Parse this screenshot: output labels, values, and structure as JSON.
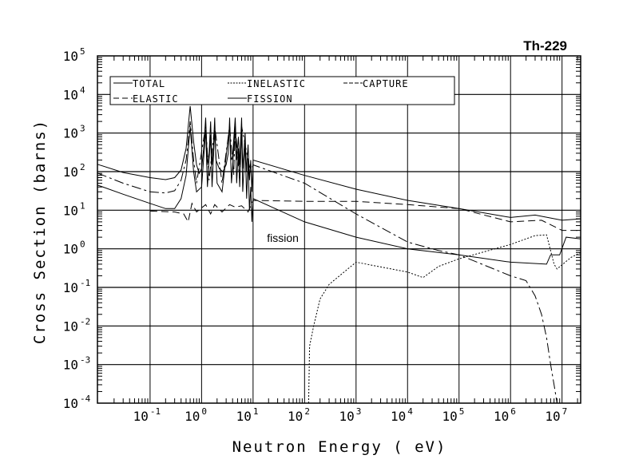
{
  "chart_data": {
    "type": "line",
    "title": "Th-229",
    "xlabel": "Neutron Energy ( eV)",
    "ylabel": "Cross Section (barns)",
    "xscale": "log",
    "yscale": "log",
    "xlim": [
      0.0095,
      23000000
    ],
    "ylim": [
      0.0001,
      100000
    ],
    "grid": true,
    "legend_position": "top-left",
    "x_ticks": [
      {
        "exp": "-1",
        "value": 0.1
      },
      {
        "exp": "0",
        "value": 1
      },
      {
        "exp": "1",
        "value": 10
      },
      {
        "exp": "2",
        "value": 100
      },
      {
        "exp": "3",
        "value": 1000
      },
      {
        "exp": "4",
        "value": 10000
      },
      {
        "exp": "5",
        "value": 100000
      },
      {
        "exp": "6",
        "value": 1000000
      },
      {
        "exp": "7",
        "value": 10000000
      }
    ],
    "y_ticks": [
      {
        "exp": "5",
        "value": 100000
      },
      {
        "exp": "4",
        "value": 10000
      },
      {
        "exp": "3",
        "value": 1000
      },
      {
        "exp": "2",
        "value": 100
      },
      {
        "exp": "1",
        "value": 10
      },
      {
        "exp": "0",
        "value": 1
      },
      {
        "exp": "-1",
        "value": 0.1
      },
      {
        "exp": "-2",
        "value": 0.01
      },
      {
        "exp": "-3",
        "value": 0.001
      },
      {
        "exp": "-4",
        "value": 0.0001
      }
    ],
    "tick_base": "10",
    "annotations": [
      {
        "text": "fission",
        "x": 20,
        "y": 1.9
      }
    ],
    "series": [
      {
        "name": "TOTAL",
        "style": "solid",
        "points": [
          [
            0.0095,
            155
          ],
          [
            0.03,
            95
          ],
          [
            0.1,
            70
          ],
          [
            0.2,
            62
          ],
          [
            0.3,
            70
          ],
          [
            0.4,
            110
          ],
          [
            0.5,
            400
          ],
          [
            0.6,
            5000
          ],
          [
            0.7,
            600
          ],
          [
            0.8,
            150
          ],
          [
            0.9,
            90
          ],
          [
            1.0,
            120
          ],
          [
            1.1,
            400
          ],
          [
            1.2,
            2500
          ],
          [
            1.3,
            150
          ],
          [
            1.4,
            300
          ],
          [
            1.5,
            2000
          ],
          [
            1.6,
            150
          ],
          [
            1.7,
            400
          ],
          [
            1.8,
            2500
          ],
          [
            1.9,
            200
          ],
          [
            2.2,
            120
          ],
          [
            2.6,
            100
          ],
          [
            3.0,
            150
          ],
          [
            3.3,
            300
          ],
          [
            3.5,
            2500
          ],
          [
            3.7,
            200
          ],
          [
            4.0,
            250
          ],
          [
            4.5,
            2500
          ],
          [
            4.8,
            200
          ],
          [
            5.2,
            800
          ],
          [
            5.5,
            150
          ],
          [
            6.0,
            2500
          ],
          [
            6.3,
            120
          ],
          [
            7.0,
            1000
          ],
          [
            7.4,
            100
          ],
          [
            8.0,
            500
          ],
          [
            8.5,
            60
          ],
          [
            9.0,
            200
          ],
          [
            9.5,
            30
          ],
          [
            10,
            200
          ],
          [
            100,
            80
          ],
          [
            1000,
            35
          ],
          [
            10000,
            18
          ],
          [
            100000,
            11
          ],
          [
            1000000,
            6.5
          ],
          [
            3000000,
            7.5
          ],
          [
            10000000,
            5.5
          ],
          [
            23000000,
            6
          ]
        ]
      },
      {
        "name": "ELASTIC",
        "style": "longdash",
        "points": [
          [
            0.1,
            9.5
          ],
          [
            0.3,
            9
          ],
          [
            0.45,
            8
          ],
          [
            0.55,
            5
          ],
          [
            0.65,
            15
          ],
          [
            0.8,
            9
          ],
          [
            1.2,
            14
          ],
          [
            1.5,
            8
          ],
          [
            1.8,
            14
          ],
          [
            2.5,
            9
          ],
          [
            3.5,
            14
          ],
          [
            4.5,
            12
          ],
          [
            6,
            13
          ],
          [
            8,
            9
          ],
          [
            10,
            18
          ],
          [
            100,
            17
          ],
          [
            1000,
            17
          ],
          [
            10000,
            14
          ],
          [
            100000,
            11
          ],
          [
            1000000,
            5
          ],
          [
            4000000,
            5.5
          ],
          [
            10000000,
            3
          ],
          [
            23000000,
            3
          ]
        ]
      },
      {
        "name": "CAPTURE",
        "style": "dashdot",
        "points": [
          [
            0.0095,
            92
          ],
          [
            0.03,
            50
          ],
          [
            0.1,
            30
          ],
          [
            0.2,
            28
          ],
          [
            0.3,
            32
          ],
          [
            0.4,
            60
          ],
          [
            0.5,
            200
          ],
          [
            0.6,
            2000
          ],
          [
            0.7,
            200
          ],
          [
            0.8,
            50
          ],
          [
            1.2,
            1500
          ],
          [
            1.4,
            60
          ],
          [
            1.8,
            1500
          ],
          [
            2.5,
            50
          ],
          [
            3.5,
            1500
          ],
          [
            4.2,
            80
          ],
          [
            4.5,
            1500
          ],
          [
            5.5,
            60
          ],
          [
            6,
            1500
          ],
          [
            7,
            500
          ],
          [
            8,
            200
          ],
          [
            9,
            100
          ],
          [
            10,
            150
          ],
          [
            100,
            50
          ],
          [
            1000,
            8
          ],
          [
            10000,
            1.5
          ],
          [
            40000,
            0.9
          ],
          [
            100000,
            0.7
          ],
          [
            1000000,
            0.2
          ],
          [
            2000000,
            0.15
          ],
          [
            3000000,
            0.06
          ],
          [
            4000000,
            0.02
          ],
          [
            5000000,
            0.005
          ],
          [
            6000000,
            0.001
          ],
          [
            7000000,
            0.0003
          ],
          [
            8000000,
            0.0001
          ]
        ]
      },
      {
        "name": "INELASTIC",
        "style": "dotted",
        "points": [
          [
            120,
            0.0001
          ],
          [
            125,
            0.003
          ],
          [
            150,
            0.01
          ],
          [
            200,
            0.05
          ],
          [
            300,
            0.12
          ],
          [
            1000,
            0.45
          ],
          [
            10000,
            0.25
          ],
          [
            20000,
            0.18
          ],
          [
            40000,
            0.35
          ],
          [
            100000,
            0.55
          ],
          [
            1000000,
            1.3
          ],
          [
            3000000,
            2.2
          ],
          [
            5000000,
            2.3
          ],
          [
            7000000,
            0.4
          ],
          [
            8000000,
            0.3
          ],
          [
            15000000,
            0.6
          ],
          [
            23000000,
            0.8
          ]
        ]
      },
      {
        "name": "FISSION",
        "style": "solid",
        "points": [
          [
            0.0095,
            45
          ],
          [
            0.03,
            26
          ],
          [
            0.1,
            15
          ],
          [
            0.2,
            11
          ],
          [
            0.3,
            11
          ],
          [
            0.4,
            20
          ],
          [
            0.5,
            80
          ],
          [
            0.6,
            1500
          ],
          [
            0.7,
            100
          ],
          [
            0.8,
            30
          ],
          [
            1.0,
            40
          ],
          [
            1.2,
            1200
          ],
          [
            1.3,
            40
          ],
          [
            1.5,
            900
          ],
          [
            1.6,
            40
          ],
          [
            1.8,
            1200
          ],
          [
            2.0,
            50
          ],
          [
            2.5,
            30
          ],
          [
            3.5,
            1500
          ],
          [
            3.8,
            50
          ],
          [
            4.5,
            1500
          ],
          [
            4.8,
            50
          ],
          [
            5.2,
            400
          ],
          [
            5.5,
            40
          ],
          [
            6,
            1500
          ],
          [
            6.3,
            30
          ],
          [
            7,
            500
          ],
          [
            7.5,
            20
          ],
          [
            8,
            200
          ],
          [
            8.5,
            10
          ],
          [
            9,
            40
          ],
          [
            9.5,
            5
          ],
          [
            10,
            20
          ],
          [
            100,
            5
          ],
          [
            1000,
            2
          ],
          [
            10000,
            1
          ],
          [
            100000,
            0.7
          ],
          [
            1000000,
            0.45
          ],
          [
            5000000,
            0.4
          ],
          [
            6000000,
            0.7
          ],
          [
            9000000,
            0.7
          ],
          [
            12000000,
            2
          ],
          [
            23000000,
            1.8
          ]
        ]
      }
    ]
  }
}
